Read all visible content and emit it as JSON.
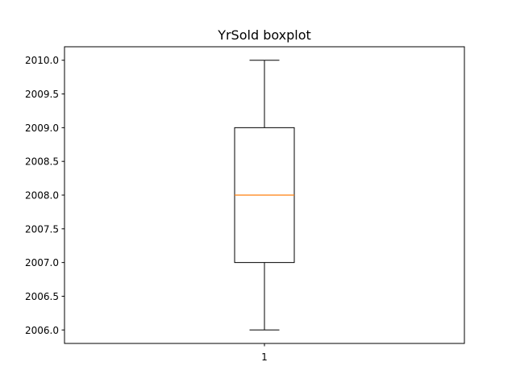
{
  "chart_data": {
    "type": "boxplot",
    "title": "YrSold boxplot",
    "xlabel": "",
    "ylabel": "",
    "categories": [
      "1"
    ],
    "boxes": [
      {
        "label": "1",
        "whisker_low": 2006.0,
        "q1": 2007.0,
        "median": 2008.0,
        "q3": 2009.0,
        "whisker_high": 2010.0
      }
    ],
    "ylim": [
      2005.8,
      2010.2
    ],
    "yticks": [
      2006.0,
      2006.5,
      2007.0,
      2007.5,
      2008.0,
      2008.5,
      2009.0,
      2009.5,
      2010.0
    ],
    "ytick_labels": [
      "2006.0",
      "2006.5",
      "2007.0",
      "2007.5",
      "2008.0",
      "2008.5",
      "2009.0",
      "2009.5",
      "2010.0"
    ],
    "grid": false,
    "colors": {
      "box": "#000000",
      "median": "#ff7f0e",
      "whisker": "#000000",
      "axes": "#000000",
      "background": "#ffffff"
    }
  }
}
